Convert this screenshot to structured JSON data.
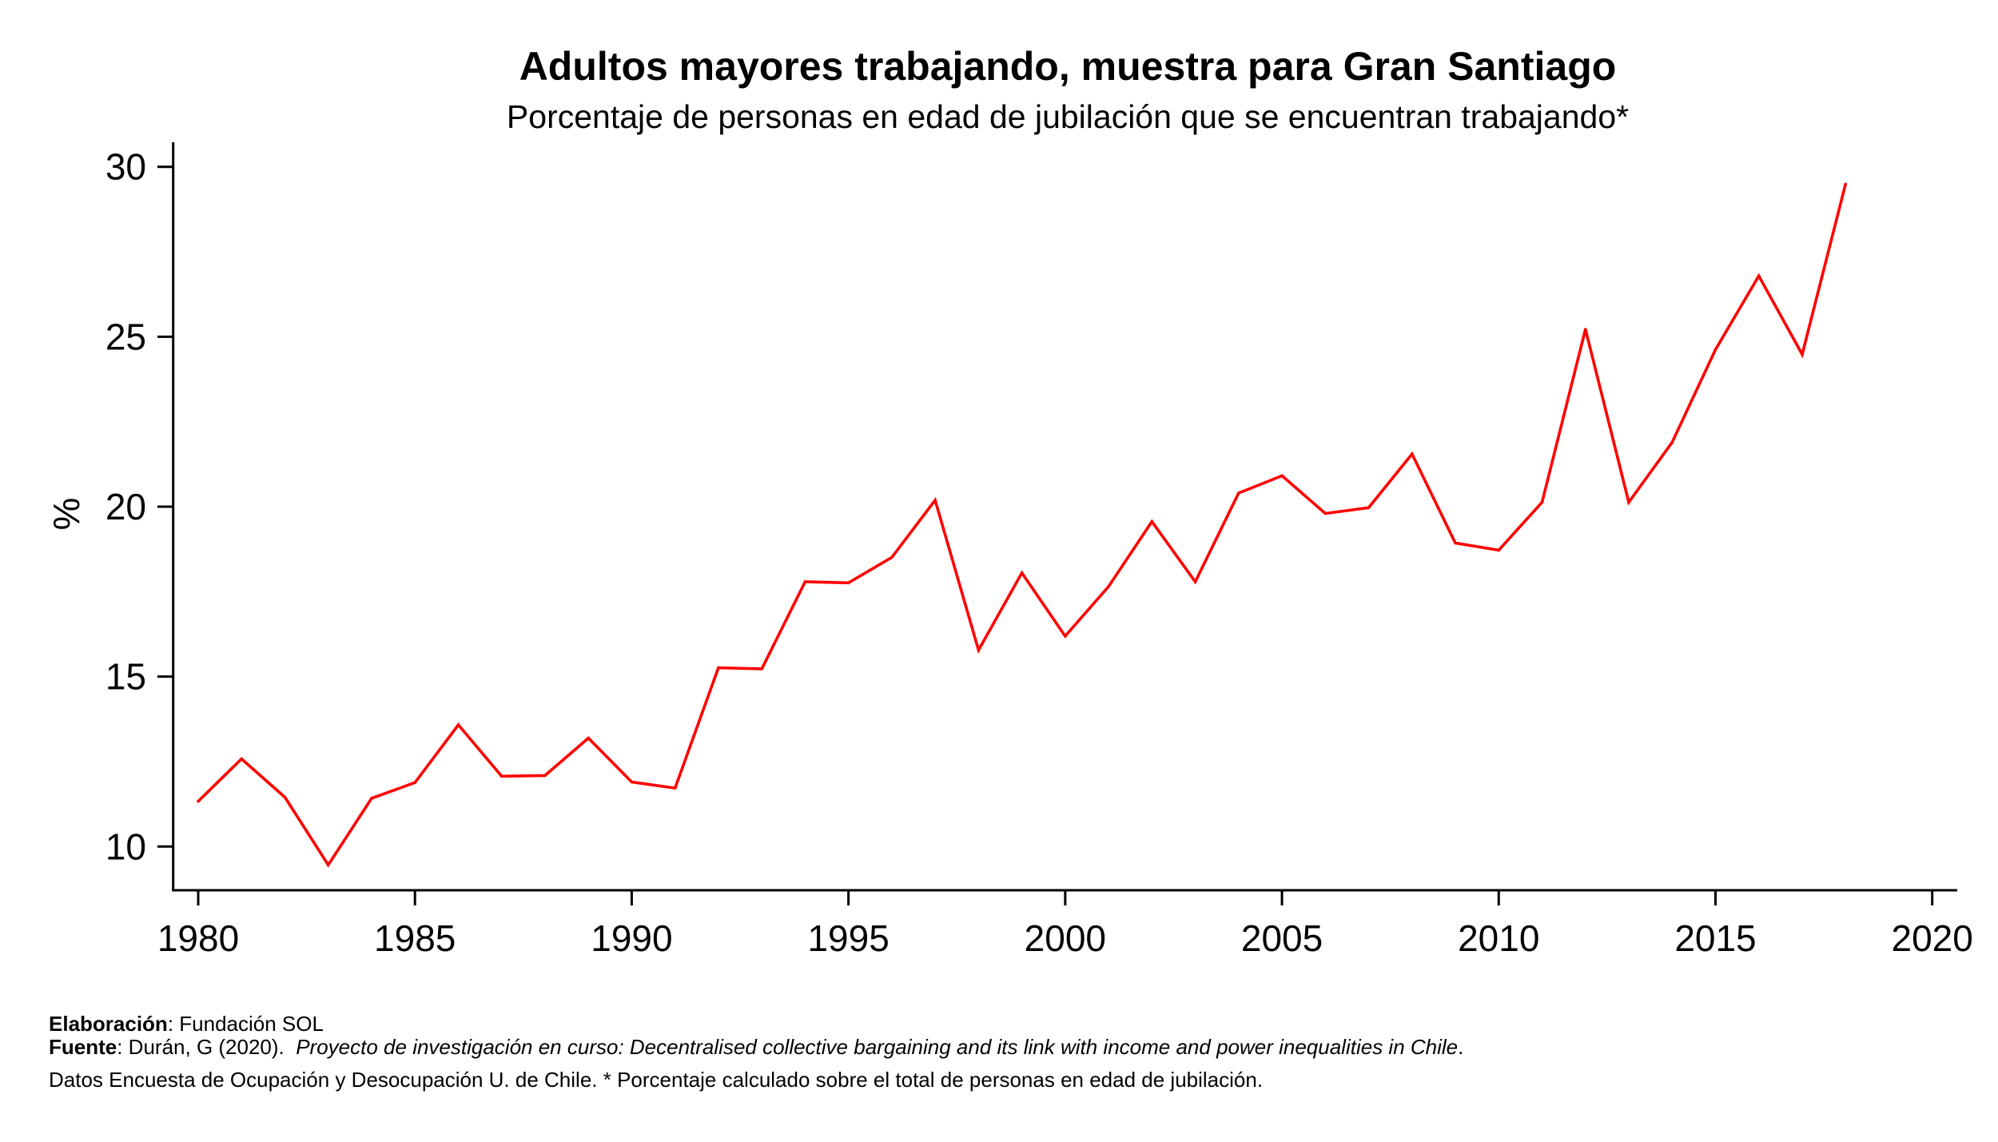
{
  "chart_data": {
    "type": "line",
    "title": "Adultos mayores trabajando, muestra para Gran Santiago",
    "subtitle": "Porcentaje de personas en edad de jubilación que se encuentran trabajando*",
    "xlabel": "",
    "ylabel": "%",
    "xlim": [
      1980,
      2020
    ],
    "ylim": [
      10,
      30
    ],
    "xticks": [
      "1980",
      "1985",
      "1990",
      "1995",
      "2000",
      "2005",
      "2010",
      "2015",
      "2020"
    ],
    "yticks": [
      "10",
      "15",
      "20",
      "25",
      "30"
    ],
    "grid": false,
    "legend": "none",
    "series": [
      {
        "name": "Adultos mayores trabajando (%)",
        "color": "#ff0000",
        "x": [
          1980,
          1981,
          1982,
          1983,
          1984,
          1985,
          1986,
          1987,
          1988,
          1989,
          1990,
          1991,
          1992,
          1993,
          1994,
          1995,
          1996,
          1997,
          1998,
          1999,
          2000,
          2001,
          2002,
          2003,
          2004,
          2005,
          2006,
          2007,
          2008,
          2009,
          2010,
          2011,
          2012,
          2013,
          2014,
          2015,
          2016,
          2017,
          2018
        ],
        "values": [
          11.33,
          12.58,
          11.45,
          9.46,
          11.42,
          11.88,
          13.58,
          12.07,
          12.09,
          13.19,
          11.9,
          11.72,
          15.26,
          15.23,
          17.79,
          17.76,
          18.51,
          20.19,
          15.78,
          18.05,
          16.19,
          17.65,
          19.56,
          17.79,
          20.4,
          20.91,
          19.8,
          19.97,
          21.55,
          18.93,
          18.72,
          20.13,
          25.22,
          20.13,
          21.89,
          24.62,
          26.79,
          24.48,
          29.49
        ]
      }
    ]
  },
  "footer": {
    "elaboracion_label": "Elaboración",
    "elaboracion_text": ": Fundación SOL",
    "fuente_label": "Fuente",
    "fuente_text": ": Durán, G (2020).  ",
    "fuente_italic": "Proyecto de investigación en curso: Decentralised collective bargaining and its link with income and power inequalities in Chile",
    "fuente_end": ".",
    "note": "Datos Encuesta de Ocupación y Desocupación U. de Chile. * Porcentaje calculado sobre el total de personas en edad de jubilación."
  }
}
